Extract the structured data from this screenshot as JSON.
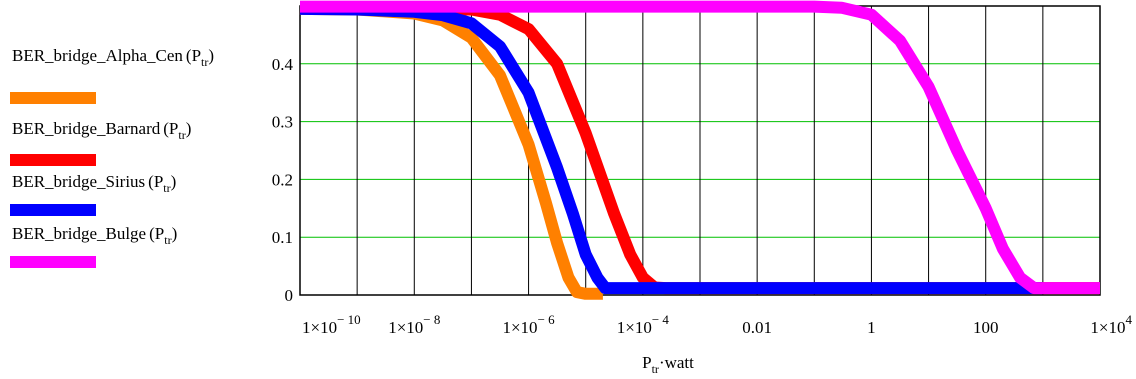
{
  "chart_data": {
    "type": "line",
    "x_scale": "log",
    "xlim": [
      1e-10,
      10000
    ],
    "ylim": [
      0,
      0.5
    ],
    "grid": {
      "vertical": "each decade",
      "horizontal": [
        0.1,
        0.2,
        0.3,
        0.4
      ]
    },
    "xlabel": {
      "base": "P",
      "sub": "tr",
      "rest": "·watt"
    },
    "x_ticks": [
      {
        "value": 1e-10,
        "mantissa": "1×10",
        "exp": "− 10"
      },
      {
        "value": 1e-08,
        "mantissa": "1×10",
        "exp": "− 8"
      },
      {
        "value": 1e-06,
        "mantissa": "1×10",
        "exp": "− 6"
      },
      {
        "value": 0.0001,
        "mantissa": "1×10",
        "exp": "− 4"
      },
      {
        "value": 0.01,
        "mantissa": "0.01",
        "exp": ""
      },
      {
        "value": 1,
        "mantissa": "1",
        "exp": ""
      },
      {
        "value": 100,
        "mantissa": "100",
        "exp": ""
      },
      {
        "value": 10000,
        "mantissa": "1×10",
        "exp": "4"
      }
    ],
    "y_ticks": [
      {
        "value": 0,
        "label": "0"
      },
      {
        "value": 0.1,
        "label": "0.1"
      },
      {
        "value": 0.2,
        "label": "0.2"
      },
      {
        "value": 0.3,
        "label": "0.3"
      },
      {
        "value": 0.4,
        "label": "0.4"
      }
    ],
    "series": [
      {
        "name": "BER_bridge_Alpha_Cen",
        "arg": "tr",
        "color": "#ff8000",
        "points": [
          [
            1e-10,
            0.495
          ],
          [
            1e-09,
            0.494
          ],
          [
            1e-08,
            0.487
          ],
          [
            3.16e-08,
            0.475
          ],
          [
            1e-07,
            0.445
          ],
          [
            3.16e-07,
            0.38
          ],
          [
            1e-06,
            0.26
          ],
          [
            2e-06,
            0.16
          ],
          [
            3.16e-06,
            0.09
          ],
          [
            5e-06,
            0.03
          ],
          [
            7e-06,
            0.005
          ],
          [
            1e-05,
            0.002
          ],
          [
            2e-05,
            0.002
          ]
        ]
      },
      {
        "name": "BER_bridge_Barnard",
        "arg": "tr",
        "color": "#ff0000",
        "points": [
          [
            1e-10,
            0.496
          ],
          [
            1e-07,
            0.494
          ],
          [
            3.16e-07,
            0.485
          ],
          [
            1e-06,
            0.46
          ],
          [
            3.16e-06,
            0.4
          ],
          [
            1e-05,
            0.28
          ],
          [
            3.16e-05,
            0.14
          ],
          [
            6e-05,
            0.07
          ],
          [
            0.0001,
            0.03
          ],
          [
            0.00016,
            0.013
          ],
          [
            0.00025,
            0.012
          ],
          [
            10000.0,
            0.012
          ]
        ]
      },
      {
        "name": "BER_bridge_Sirius",
        "arg": "tr",
        "color": "#0000ff",
        "points": [
          [
            1e-10,
            0.495
          ],
          [
            1e-09,
            0.494
          ],
          [
            1e-08,
            0.49
          ],
          [
            3.16e-08,
            0.484
          ],
          [
            1e-07,
            0.47
          ],
          [
            3.16e-07,
            0.43
          ],
          [
            1e-06,
            0.35
          ],
          [
            3.16e-06,
            0.22
          ],
          [
            6e-06,
            0.14
          ],
          [
            1e-05,
            0.07
          ],
          [
            1.6e-05,
            0.03
          ],
          [
            2.2e-05,
            0.012
          ],
          [
            3e-05,
            0.012
          ],
          [
            1000,
            0.012
          ]
        ]
      },
      {
        "name": "BER_bridge_Bulge",
        "arg": "tr",
        "color": "#ff00ff",
        "points": [
          [
            1e-10,
            0.499
          ],
          [
            0.1,
            0.499
          ],
          [
            0.3,
            0.497
          ],
          [
            1,
            0.485
          ],
          [
            3.16,
            0.44
          ],
          [
            10,
            0.36
          ],
          [
            31.6,
            0.25
          ],
          [
            100,
            0.15
          ],
          [
            200,
            0.08
          ],
          [
            400,
            0.03
          ],
          [
            700,
            0.012
          ],
          [
            10000.0,
            0.012
          ]
        ]
      }
    ]
  }
}
